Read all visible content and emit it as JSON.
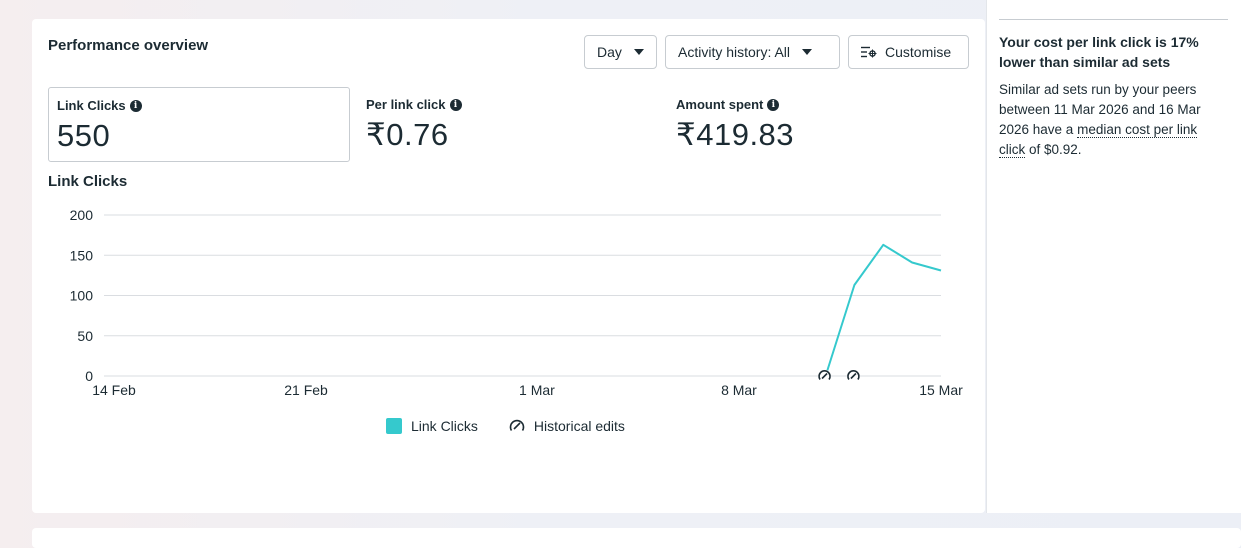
{
  "card": {
    "title": "Performance overview"
  },
  "controls": {
    "day_label": "Day",
    "activity_label": "Activity history: All",
    "customise_label": "Customise"
  },
  "metrics": [
    {
      "label": "Link Clicks",
      "value": "550"
    },
    {
      "label": "Per link click",
      "value": "₹0.76"
    },
    {
      "label": "Amount spent",
      "value": "₹419.83"
    }
  ],
  "legend": {
    "series": "Link Clicks",
    "edits": "Historical edits"
  },
  "insight": {
    "title": "Your cost per link click is 17% lower than similar ad sets",
    "text_before": "Similar ad sets run by your peers between 11 Mar 2026 and 16 Mar 2026 have a ",
    "link": "median cost per link click",
    "text_after": " of $0.92."
  },
  "colors": {
    "line": "#35c9cd",
    "grid": "#dadde1",
    "text": "#1c2b33"
  },
  "chart_data": {
    "type": "line",
    "title": "Link Clicks",
    "ylim": [
      0,
      200
    ],
    "yticks": [
      0,
      50,
      100,
      150,
      200
    ],
    "xticks": [
      "14 Feb",
      "21 Feb",
      "1 Mar",
      "8 Mar",
      "15 Mar"
    ],
    "grid": true,
    "series": [
      {
        "name": "Link Clicks",
        "x": [
          "11 Mar",
          "12 Mar",
          "13 Mar",
          "14 Mar",
          "15 Mar"
        ],
        "values": [
          0,
          113,
          163,
          141,
          131
        ]
      }
    ],
    "historical_edits": [
      "11 Mar",
      "12 Mar"
    ]
  }
}
